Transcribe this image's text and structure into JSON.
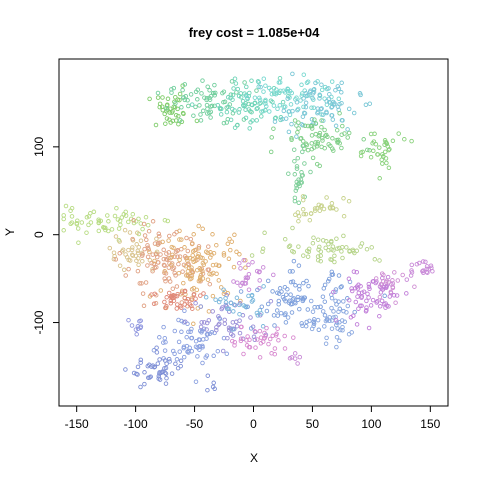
{
  "chart_data": {
    "type": "scatter",
    "title": "frey  cost = 1.085e+04",
    "xlabel": "X",
    "ylabel": "Y",
    "xlim": [
      -165,
      165
    ],
    "ylim": [
      -195,
      200
    ],
    "x_ticks": [
      -150,
      -100,
      -50,
      0,
      50,
      100,
      150
    ],
    "x_tick_labels": [
      "-150",
      "-100",
      "-50",
      "0",
      "50",
      "100",
      "150"
    ],
    "y_ticks": [
      -100,
      0,
      100
    ],
    "y_tick_labels": [
      "-100",
      "0",
      "100"
    ],
    "grid": false,
    "marker": "open-circle",
    "clusters": [
      {
        "cx": -70,
        "cy": 140,
        "sx": 10,
        "sy": 10,
        "n": 40,
        "color": "#7fcc6a"
      },
      {
        "cx": -40,
        "cy": 150,
        "sx": 16,
        "sy": 12,
        "n": 70,
        "color": "#73cf9e"
      },
      {
        "cx": 0,
        "cy": 150,
        "sx": 16,
        "sy": 14,
        "n": 70,
        "color": "#6ed4b8"
      },
      {
        "cx": 30,
        "cy": 160,
        "sx": 18,
        "sy": 12,
        "n": 70,
        "color": "#78d8d0"
      },
      {
        "cx": 55,
        "cy": 145,
        "sx": 18,
        "sy": 14,
        "n": 80,
        "color": "#7ac7d6"
      },
      {
        "cx": 55,
        "cy": 110,
        "sx": 16,
        "sy": 12,
        "n": 70,
        "color": "#80cf88"
      },
      {
        "cx": 105,
        "cy": 95,
        "sx": 10,
        "sy": 12,
        "n": 35,
        "color": "#8ad27c"
      },
      {
        "cx": 38,
        "cy": 65,
        "sx": 4,
        "sy": 20,
        "n": 30,
        "color": "#7fcf9a"
      },
      {
        "cx": 55,
        "cy": 30,
        "sx": 14,
        "sy": 6,
        "n": 30,
        "color": "#c7d28b"
      },
      {
        "cx": -125,
        "cy": 15,
        "sx": 20,
        "sy": 8,
        "n": 60,
        "color": "#b8dc84"
      },
      {
        "cx": -100,
        "cy": -20,
        "sx": 12,
        "sy": 12,
        "n": 40,
        "color": "#d9c48e"
      },
      {
        "cx": -75,
        "cy": -35,
        "sx": 18,
        "sy": 18,
        "n": 110,
        "color": "#e0a184"
      },
      {
        "cx": -45,
        "cy": -35,
        "sx": 18,
        "sy": 20,
        "n": 110,
        "color": "#e0b070"
      },
      {
        "cx": -60,
        "cy": -75,
        "sx": 14,
        "sy": 8,
        "n": 40,
        "color": "#e08878"
      },
      {
        "cx": 60,
        "cy": -15,
        "sx": 24,
        "sy": 8,
        "n": 60,
        "color": "#b6d48a"
      },
      {
        "cx": -50,
        "cy": -120,
        "sx": 16,
        "sy": 14,
        "n": 70,
        "color": "#8aa0e0"
      },
      {
        "cx": -20,
        "cy": -100,
        "sx": 14,
        "sy": 14,
        "n": 50,
        "color": "#9a8fd8"
      },
      {
        "cx": -80,
        "cy": -155,
        "sx": 12,
        "sy": 10,
        "n": 45,
        "color": "#7e8fd6"
      },
      {
        "cx": -100,
        "cy": -105,
        "sx": 6,
        "sy": 4,
        "n": 10,
        "color": "#8f96df"
      },
      {
        "cx": -10,
        "cy": -80,
        "sx": 10,
        "sy": 10,
        "n": 30,
        "color": "#7ab7dc"
      },
      {
        "cx": -5,
        "cy": -45,
        "sx": 8,
        "sy": 10,
        "n": 25,
        "color": "#c98ad8"
      },
      {
        "cx": 5,
        "cy": -120,
        "sx": 14,
        "sy": 8,
        "n": 40,
        "color": "#d88ad0"
      },
      {
        "cx": 40,
        "cy": -75,
        "sx": 20,
        "sy": 16,
        "n": 90,
        "color": "#7ea0dc"
      },
      {
        "cx": 65,
        "cy": -100,
        "sx": 14,
        "sy": 14,
        "n": 50,
        "color": "#8aa8e0"
      },
      {
        "cx": 100,
        "cy": -70,
        "sx": 14,
        "sy": 16,
        "n": 70,
        "color": "#c17fd9"
      },
      {
        "cx": 115,
        "cy": -60,
        "sx": 6,
        "sy": 10,
        "n": 20,
        "color": "#d090d4"
      },
      {
        "cx": 140,
        "cy": -40,
        "sx": 6,
        "sy": 6,
        "n": 20,
        "color": "#c98ad8"
      },
      {
        "cx": 35,
        "cy": -140,
        "sx": 4,
        "sy": 4,
        "n": 6,
        "color": "#c88ad6"
      },
      {
        "cx": -35,
        "cy": -170,
        "sx": 5,
        "sy": 4,
        "n": 5,
        "color": "#7e8fd6"
      }
    ]
  }
}
